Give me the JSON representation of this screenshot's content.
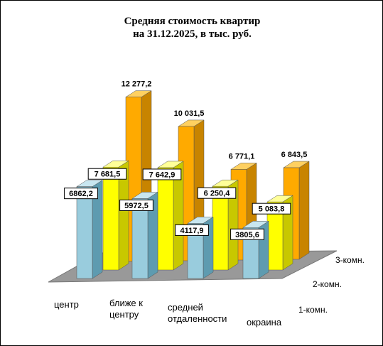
{
  "chart_data": {
    "type": "bar",
    "title": [
      "Средняя стоимость квартир",
      "на 31.12.2025, в тыс. руб."
    ],
    "categories": [
      [
        "центр"
      ],
      [
        "ближе к",
        "центру"
      ],
      [
        "средней",
        "отдаленности"
      ],
      [
        "окраина"
      ]
    ],
    "series": [
      {
        "name": "3-комн.",
        "values": [
          12277.2,
          10031.5,
          6771.1,
          6843.5
        ],
        "labels": [
          "12 277,2",
          "10 031,5",
          "6 771,1",
          "6 843,5"
        ],
        "boxed": false,
        "colors": {
          "front": "#FFAA00",
          "side": "#C88400",
          "top": "#FFD060"
        }
      },
      {
        "name": "2-комн.",
        "values": [
          7681.5,
          7642.9,
          6250.4,
          5083.8
        ],
        "labels": [
          "7 681,5",
          "7 642,9",
          "6 250,4",
          "5 083,8"
        ],
        "boxed": true,
        "colors": {
          "front": "#FFFF00",
          "side": "#C8C800",
          "top": "#FFFF99"
        }
      },
      {
        "name": "1-комн.",
        "values": [
          6862.2,
          5972.5,
          4117.9,
          3805.6
        ],
        "labels": [
          "6862,2",
          "5972,5",
          "4117,9",
          "3805,6"
        ],
        "boxed": true,
        "colors": {
          "front": "#99CCDD",
          "side": "#5E9BB0",
          "top": "#C8E6F0"
        }
      }
    ],
    "floor_color": "#999999",
    "ylim": [
      0,
      13000
    ],
    "grid": false,
    "legend": "none"
  }
}
